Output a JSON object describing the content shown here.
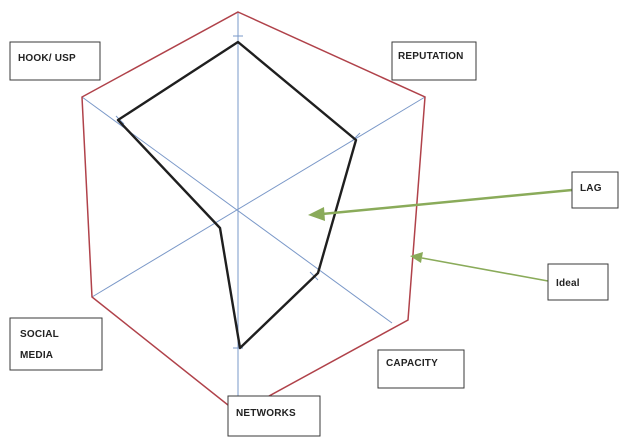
{
  "diagram": {
    "axes": [
      "HOOK/ USP",
      "REPUTATION",
      "CAPACITY",
      "NETWORKS",
      "SOCIAL MEDIA"
    ],
    "social_media_lines": [
      "SOCIAL",
      "MEDIA"
    ],
    "callouts": {
      "lag": "LAG",
      "ideal": "Ideal"
    },
    "colors": {
      "ideal_outline": "#b0424a",
      "lag_outline": "#1f1f1f",
      "spokes": "#7a98c8",
      "arrows": "#8aab5a"
    }
  }
}
